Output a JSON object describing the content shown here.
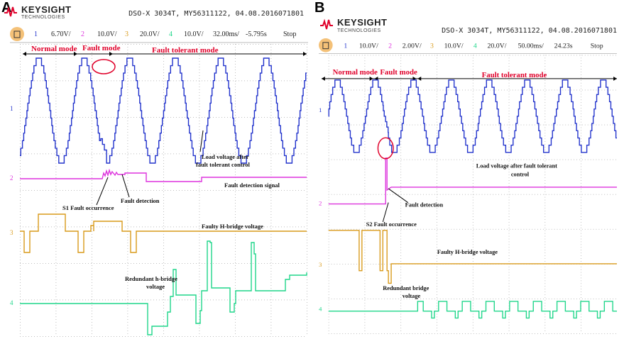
{
  "panel_a": {
    "label": "A",
    "brand": "KEYSIGHT",
    "brand_sub": "TECHNOLOGIES",
    "info": "DSO-X 3034T, MY56311122, 04.08.2016071801",
    "toolbar": [
      "1",
      "6.70V/",
      "2",
      "10.0V/",
      "3",
      "20.0V/",
      "4",
      "10.0V/",
      "32.00ms/",
      "-5.795s",
      "Stop"
    ],
    "modes": [
      "Normal mode",
      "Fault mode",
      "Fault tolerant mode"
    ],
    "annotations": {
      "load_voltage": "Load voltage after fault tolerant control",
      "fault_detection_signal": "Fault detection signal",
      "fault_occurrence": "S1 Fault occurrence",
      "fault_detection": "Fault detection",
      "faulty_hbridge": "Faulty H-bridge voltage",
      "redundant_hbridge": "Redundant h-bridge voltage"
    },
    "channel_markers": [
      "1",
      "2",
      "3",
      "4"
    ]
  },
  "panel_b": {
    "label": "B",
    "brand": "KEYSIGHT",
    "brand_sub": "TECHNOLOGIES",
    "info": "DSO-X 3034T, MY56311122, 04.08.2016071801",
    "toolbar": [
      "1",
      "10.0V/",
      "2",
      "2.00V/",
      "3",
      "10.0V/",
      "4",
      "20.0V/",
      "50.00ms/",
      "24.23s",
      "Stop"
    ],
    "modes": [
      "Normal mode",
      "Fault mode",
      "Fault tolerant  mode"
    ],
    "annotations": {
      "load_voltage": "Load voltage after fault tolerant control",
      "fault_detection": "Fault detection",
      "fault_occurrence": "S2 Fault occurrence",
      "faulty_hbridge": "Faulty H-bridge voltage",
      "redundant_bridge": "Redundant bridge voltage"
    },
    "channel_markers": [
      "1",
      "2",
      "3",
      "4"
    ]
  },
  "colors": {
    "ch1": "#2233cc",
    "ch2": "#dd33dd",
    "ch3": "#d99a1a",
    "ch4": "#1fd68a",
    "mode_text": "#e0002a",
    "grid": "#9a9a9a"
  },
  "chart_data": [
    {
      "type": "line",
      "panel": "A",
      "series": [
        {
          "name": "Load voltage after fault tolerant control",
          "channel": "1",
          "cycles": 6.3,
          "levels": 7,
          "fault_dip_cycle": 2
        },
        {
          "name": "Fault detection signal",
          "channel": "2",
          "states": [
            0,
            1,
            0.5
          ]
        },
        {
          "name": "Faulty H-bridge voltage",
          "channel": "3",
          "states": [
            1,
            1,
            0
          ]
        },
        {
          "name": "Redundant h-bridge voltage",
          "channel": "4",
          "states": [
            0,
            0,
            1
          ]
        }
      ]
    },
    {
      "type": "line",
      "panel": "B",
      "series": [
        {
          "name": "Load voltage after fault tolerant control",
          "channel": "1",
          "cycles": 7.6,
          "levels": 7,
          "fault_dip_cycle": 1
        },
        {
          "name": "Fault detection",
          "channel": "2",
          "states": [
            0,
            1,
            1
          ]
        },
        {
          "name": "Faulty H-bridge voltage",
          "channel": "3",
          "states": [
            1,
            1,
            0
          ]
        },
        {
          "name": "Redundant bridge voltage",
          "channel": "4",
          "states": [
            0,
            0,
            1
          ]
        }
      ]
    }
  ]
}
